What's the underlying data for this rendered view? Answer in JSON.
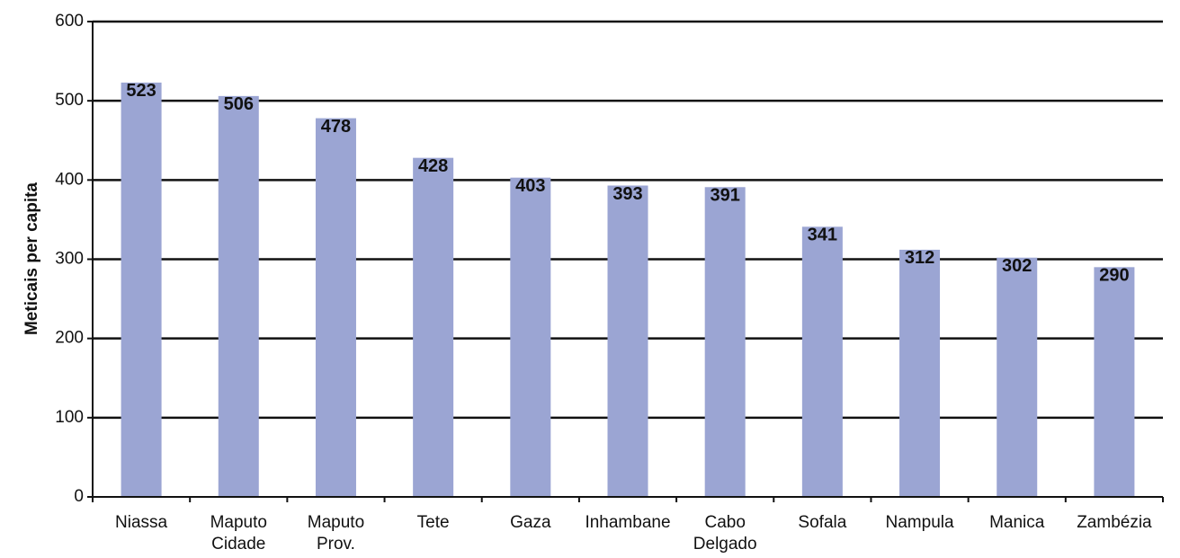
{
  "chart_data": {
    "type": "bar",
    "y_label": "Meticais per capita",
    "categories": [
      "Niassa",
      "Maputo Cidade",
      "Maputo Prov.",
      "Tete",
      "Gaza",
      "Inhambane",
      "Cabo Delgado",
      "Sofala",
      "Nampula",
      "Manica",
      "Zambézia"
    ],
    "values": [
      523,
      506,
      478,
      428,
      403,
      393,
      391,
      341,
      312,
      302,
      290
    ],
    "color": "#9ba5d3",
    "ylim": [
      0,
      600
    ],
    "yticks": [
      0,
      100,
      200,
      300,
      400,
      500,
      600
    ],
    "grid": true
  }
}
